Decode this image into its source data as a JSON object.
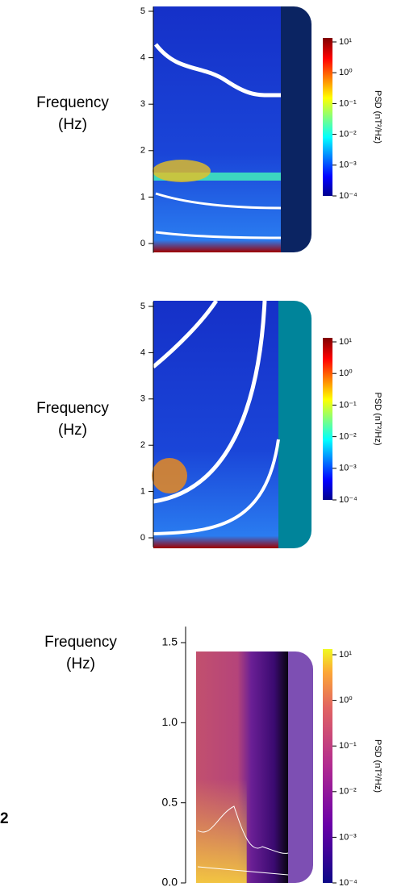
{
  "chart_data": [
    {
      "type": "heatmap",
      "ylabel": [
        "Frequency",
        "(Hz)"
      ],
      "ylim": [
        -0.2,
        5.1
      ],
      "yticks": [
        0,
        1,
        2,
        3,
        4,
        5
      ],
      "colormap": "jet",
      "accent_color": "#0b2462",
      "colorbar": {
        "label": "PSD (nT²/Hz)",
        "lim": [
          0.0001,
          10
        ],
        "log": true,
        "ticks": [
          {
            "value": 10,
            "label": "10¹"
          },
          {
            "value": 1,
            "label": "10⁰"
          },
          {
            "value": 0.1,
            "label": "10⁻¹"
          },
          {
            "value": 0.01,
            "label": "10⁻²"
          },
          {
            "value": 0.001,
            "label": "10⁻³"
          },
          {
            "value": 0.0001,
            "label": "10⁻⁴"
          }
        ]
      }
    },
    {
      "type": "heatmap",
      "ylabel": [
        "Frequency",
        "(Hz)"
      ],
      "ylim": [
        -0.2,
        5.1
      ],
      "yticks": [
        0,
        1,
        2,
        3,
        4,
        5
      ],
      "colormap": "jet",
      "accent_color": "#00849a",
      "colorbar": {
        "label": "PSD (nT²/Hz)",
        "lim": [
          0.0001,
          10
        ],
        "log": true,
        "ticks": [
          {
            "value": 10,
            "label": "10¹"
          },
          {
            "value": 1,
            "label": "10⁰"
          },
          {
            "value": 0.1,
            "label": "10⁻¹"
          },
          {
            "value": 0.01,
            "label": "10⁻²"
          },
          {
            "value": 0.001,
            "label": "10⁻³"
          },
          {
            "value": 0.0001,
            "label": "10⁻⁴"
          }
        ]
      }
    },
    {
      "type": "heatmap",
      "ylabel": [
        "Frequency",
        "(Hz)"
      ],
      "ylim": [
        0,
        1.6
      ],
      "yticks": [
        {
          "value": 0,
          "label": "0.0"
        },
        {
          "value": 0.5,
          "label": "0.5"
        },
        {
          "value": 1,
          "label": "1.0"
        },
        {
          "value": 1.5,
          "label": "1.5"
        }
      ],
      "colormap": "plasma",
      "accent_color": "#7d4fb3",
      "panel_label": "2",
      "colorbar": {
        "label": "PSD (nT²/Hz)",
        "lim": [
          0.0001,
          10
        ],
        "log": true,
        "ticks": [
          {
            "value": 10,
            "label": "10¹"
          },
          {
            "value": 1,
            "label": "10⁰"
          },
          {
            "value": 0.1,
            "label": "10⁻¹"
          },
          {
            "value": 0.01,
            "label": "10⁻²"
          },
          {
            "value": 0.001,
            "label": "10⁻³"
          },
          {
            "value": 0.0001,
            "label": "10⁻⁴"
          }
        ]
      }
    }
  ]
}
